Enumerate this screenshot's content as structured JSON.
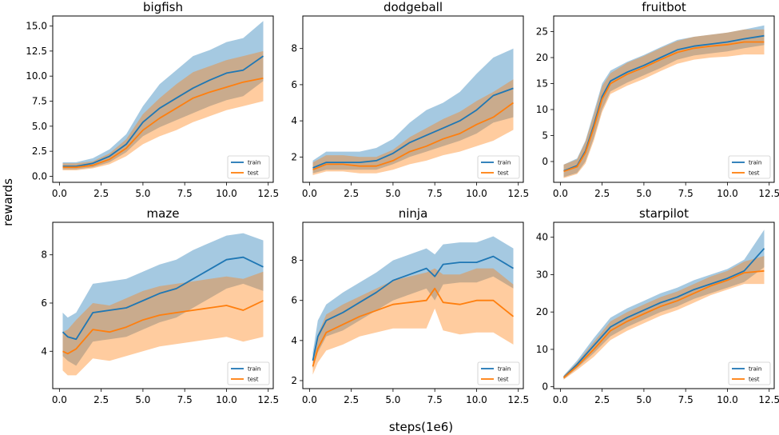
{
  "figure": {
    "xlabel": "steps(1e6)",
    "ylabel": "rewards"
  },
  "colors": {
    "train": "#1f77b4",
    "test": "#ff7f0e"
  },
  "chart_data": [
    {
      "type": "line",
      "title": "bigfish",
      "xlim": [
        -0.4,
        12.8
      ],
      "ylim": [
        -0.6,
        16.0
      ],
      "xticks": [
        0.0,
        2.5,
        5.0,
        7.5,
        10.0,
        12.5
      ],
      "xtick_labels": [
        "0.0",
        "2.5",
        "5.0",
        "7.5",
        "10.0",
        "12.5"
      ],
      "yticks": [
        0.0,
        2.5,
        5.0,
        7.5,
        10.0,
        12.5,
        15.0
      ],
      "ytick_labels": [
        "0.0",
        "2.5",
        "5.0",
        "7.5",
        "10.0",
        "12.5",
        "15.0"
      ],
      "legend_position": "lower-right",
      "x": [
        0.2,
        1.0,
        2.0,
        3.0,
        4.0,
        5.0,
        6.0,
        7.0,
        8.0,
        9.0,
        10.0,
        11.0,
        12.2
      ],
      "series": [
        {
          "name": "train",
          "values": [
            1.0,
            1.0,
            1.3,
            2.0,
            3.2,
            5.4,
            6.8,
            7.8,
            8.8,
            9.6,
            10.3,
            10.6,
            12.0
          ],
          "lower": [
            0.7,
            0.7,
            0.9,
            1.4,
            2.4,
            4.0,
            4.9,
            5.6,
            6.3,
            7.0,
            7.6,
            8.0,
            9.5
          ],
          "upper": [
            1.4,
            1.4,
            1.8,
            2.7,
            4.2,
            7.0,
            9.2,
            10.6,
            12.0,
            12.6,
            13.4,
            13.8,
            15.5
          ]
        },
        {
          "name": "test",
          "values": [
            0.9,
            0.9,
            1.1,
            1.7,
            2.8,
            4.6,
            5.8,
            6.8,
            7.8,
            8.4,
            8.9,
            9.4,
            9.8
          ],
          "lower": [
            0.6,
            0.6,
            0.8,
            1.2,
            2.0,
            3.2,
            4.0,
            4.6,
            5.4,
            6.0,
            6.6,
            7.0,
            7.5
          ],
          "upper": [
            1.3,
            1.3,
            1.5,
            2.3,
            3.7,
            6.2,
            7.8,
            9.2,
            10.4,
            11.0,
            11.6,
            12.0,
            12.5
          ]
        }
      ]
    },
    {
      "type": "line",
      "title": "dodgeball",
      "xlim": [
        -0.4,
        12.8
      ],
      "ylim": [
        0.6,
        9.8
      ],
      "xticks": [
        0.0,
        2.5,
        5.0,
        7.5,
        10.0,
        12.5
      ],
      "xtick_labels": [
        "0.0",
        "2.5",
        "5.0",
        "7.5",
        "10.0",
        "12.5"
      ],
      "yticks": [
        2,
        4,
        6,
        8
      ],
      "ytick_labels": [
        "2",
        "4",
        "6",
        "8"
      ],
      "legend_position": "lower-right",
      "x": [
        0.2,
        1.0,
        2.0,
        3.0,
        4.0,
        5.0,
        6.0,
        7.0,
        8.0,
        9.0,
        10.0,
        11.0,
        12.2
      ],
      "series": [
        {
          "name": "train",
          "values": [
            1.4,
            1.7,
            1.7,
            1.7,
            1.8,
            2.2,
            2.8,
            3.2,
            3.6,
            4.0,
            4.6,
            5.4,
            5.8
          ],
          "lower": [
            1.1,
            1.3,
            1.3,
            1.3,
            1.3,
            1.6,
            2.0,
            2.3,
            2.6,
            2.9,
            3.3,
            3.9,
            4.2
          ],
          "upper": [
            1.8,
            2.3,
            2.3,
            2.3,
            2.5,
            3.0,
            3.9,
            4.6,
            5.0,
            5.6,
            6.6,
            7.5,
            8.0
          ]
        },
        {
          "name": "test",
          "values": [
            1.3,
            1.6,
            1.6,
            1.5,
            1.5,
            1.8,
            2.3,
            2.6,
            3.0,
            3.3,
            3.8,
            4.2,
            5.0
          ],
          "lower": [
            1.0,
            1.2,
            1.2,
            1.1,
            1.1,
            1.3,
            1.6,
            1.8,
            2.1,
            2.3,
            2.6,
            2.9,
            3.5
          ],
          "upper": [
            1.7,
            2.1,
            2.1,
            2.0,
            2.0,
            2.4,
            3.1,
            3.6,
            4.1,
            4.5,
            5.1,
            5.6,
            6.3
          ]
        }
      ]
    },
    {
      "type": "line",
      "title": "fruitbot",
      "xlim": [
        -0.4,
        12.8
      ],
      "ylim": [
        -4.0,
        28.0
      ],
      "xticks": [
        0.0,
        2.5,
        5.0,
        7.5,
        10.0,
        12.5
      ],
      "xtick_labels": [
        "0.0",
        "2.5",
        "5.0",
        "7.5",
        "10.0",
        "12.5"
      ],
      "yticks": [
        0,
        5,
        10,
        15,
        20,
        25
      ],
      "ytick_labels": [
        "0",
        "5",
        "10",
        "15",
        "20",
        "25"
      ],
      "legend_position": "lower-right",
      "x": [
        0.2,
        1.0,
        1.5,
        2.0,
        2.5,
        3.0,
        4.0,
        5.0,
        6.0,
        7.0,
        8.0,
        9.0,
        10.0,
        11.0,
        12.2
      ],
      "series": [
        {
          "name": "train",
          "values": [
            -1.8,
            -0.8,
            2.0,
            7.0,
            12.5,
            15.5,
            17.2,
            18.5,
            20.0,
            21.5,
            22.2,
            22.6,
            23.0,
            23.6,
            24.2
          ],
          "lower": [
            -3.0,
            -2.2,
            0.0,
            4.5,
            10.0,
            13.5,
            15.2,
            16.6,
            18.0,
            19.6,
            20.4,
            20.8,
            21.2,
            21.8,
            22.4
          ],
          "upper": [
            -0.6,
            0.6,
            4.0,
            9.5,
            15.0,
            17.5,
            19.2,
            20.5,
            22.0,
            23.4,
            24.0,
            24.4,
            24.8,
            25.4,
            26.2
          ]
        },
        {
          "name": "test",
          "values": [
            -1.9,
            -1.0,
            1.7,
            6.5,
            12.0,
            15.0,
            16.8,
            18.1,
            19.6,
            21.0,
            21.8,
            22.2,
            22.5,
            23.0,
            23.0
          ],
          "lower": [
            -3.2,
            -2.4,
            -0.4,
            4.0,
            9.5,
            13.0,
            14.6,
            15.9,
            17.4,
            18.8,
            19.6,
            20.0,
            20.2,
            20.6,
            20.6
          ],
          "upper": [
            -0.6,
            0.4,
            3.8,
            9.0,
            14.5,
            17.0,
            19.0,
            20.3,
            21.8,
            23.2,
            24.0,
            24.4,
            24.8,
            25.4,
            25.4
          ]
        }
      ]
    },
    {
      "type": "line",
      "title": "maze",
      "xlim": [
        -0.4,
        12.8
      ],
      "ylim": [
        2.45,
        9.35
      ],
      "xticks": [
        0.0,
        2.5,
        5.0,
        7.5,
        10.0,
        12.5
      ],
      "xtick_labels": [
        "0.0",
        "2.5",
        "5.0",
        "7.5",
        "10.0",
        "12.5"
      ],
      "yticks": [
        4,
        6,
        8
      ],
      "ytick_labels": [
        "4",
        "6",
        "8"
      ],
      "legend_position": "lower-right",
      "x": [
        0.2,
        0.5,
        1.0,
        2.0,
        3.0,
        4.0,
        5.0,
        6.0,
        7.0,
        8.0,
        9.0,
        10.0,
        11.0,
        12.2
      ],
      "series": [
        {
          "name": "train",
          "values": [
            4.8,
            4.6,
            4.5,
            5.6,
            5.7,
            5.8,
            6.1,
            6.4,
            6.6,
            7.0,
            7.4,
            7.8,
            7.9,
            7.5
          ],
          "lower": [
            3.8,
            3.6,
            3.4,
            4.4,
            4.5,
            4.6,
            4.9,
            5.2,
            5.4,
            5.8,
            6.2,
            6.6,
            6.8,
            6.5
          ],
          "upper": [
            5.6,
            5.4,
            5.6,
            6.8,
            6.9,
            7.0,
            7.3,
            7.6,
            7.8,
            8.2,
            8.5,
            8.8,
            8.9,
            8.6
          ]
        },
        {
          "name": "test",
          "values": [
            4.0,
            3.9,
            4.1,
            4.9,
            4.8,
            5.0,
            5.3,
            5.5,
            5.6,
            5.7,
            5.8,
            5.9,
            5.7,
            6.1
          ],
          "lower": [
            3.2,
            3.0,
            3.0,
            3.7,
            3.6,
            3.8,
            4.0,
            4.2,
            4.3,
            4.4,
            4.5,
            4.6,
            4.4,
            4.6
          ],
          "upper": [
            4.8,
            4.9,
            5.3,
            6.0,
            5.9,
            6.2,
            6.5,
            6.7,
            6.8,
            6.9,
            7.0,
            7.1,
            7.0,
            7.3
          ]
        }
      ]
    },
    {
      "type": "line",
      "title": "ninja",
      "xlim": [
        -0.4,
        12.8
      ],
      "ylim": [
        1.6,
        9.9
      ],
      "xticks": [
        0.0,
        2.5,
        5.0,
        7.5,
        10.0,
        12.5
      ],
      "xtick_labels": [
        "0.0",
        "2.5",
        "5.0",
        "7.5",
        "10.0",
        "12.5"
      ],
      "yticks": [
        2,
        4,
        6,
        8
      ],
      "ytick_labels": [
        "2",
        "4",
        "6",
        "8"
      ],
      "legend_position": "lower-right",
      "x": [
        0.2,
        0.5,
        1.0,
        2.0,
        3.0,
        4.0,
        5.0,
        6.0,
        7.0,
        7.5,
        8.0,
        9.0,
        10.0,
        11.0,
        12.2
      ],
      "series": [
        {
          "name": "train",
          "values": [
            3.0,
            4.2,
            5.0,
            5.4,
            5.9,
            6.4,
            7.0,
            7.3,
            7.6,
            7.2,
            7.8,
            7.9,
            7.9,
            8.2,
            7.6
          ],
          "lower": [
            2.6,
            3.4,
            4.2,
            4.5,
            5.0,
            5.5,
            6.0,
            6.3,
            6.6,
            6.0,
            6.8,
            6.9,
            6.9,
            7.2,
            6.6
          ],
          "upper": [
            3.4,
            5.0,
            5.8,
            6.4,
            6.9,
            7.4,
            8.0,
            8.3,
            8.6,
            8.3,
            8.8,
            8.9,
            8.9,
            9.2,
            8.6
          ]
        },
        {
          "name": "test",
          "values": [
            2.7,
            3.6,
            4.4,
            4.8,
            5.2,
            5.5,
            5.8,
            5.9,
            6.0,
            6.6,
            5.9,
            5.8,
            6.0,
            6.0,
            5.2
          ],
          "lower": [
            2.3,
            2.9,
            3.5,
            3.8,
            4.2,
            4.4,
            4.6,
            4.6,
            4.6,
            5.6,
            4.5,
            4.3,
            4.4,
            4.4,
            3.8
          ],
          "upper": [
            3.1,
            4.3,
            5.3,
            5.8,
            6.2,
            6.6,
            7.0,
            7.2,
            7.4,
            7.6,
            7.3,
            7.3,
            7.6,
            7.6,
            6.8
          ]
        }
      ]
    },
    {
      "type": "line",
      "title": "starpilot",
      "xlim": [
        -0.4,
        12.8
      ],
      "ylim": [
        -0.5,
        44.0
      ],
      "xticks": [
        0.0,
        2.5,
        5.0,
        7.5,
        10.0,
        12.5
      ],
      "xtick_labels": [
        "0.0",
        "2.5",
        "5.0",
        "7.5",
        "10.0",
        "12.5"
      ],
      "yticks": [
        0,
        10,
        20,
        30,
        40
      ],
      "ytick_labels": [
        "0",
        "10",
        "20",
        "30",
        "40"
      ],
      "legend_position": "lower-right",
      "x": [
        0.2,
        1.0,
        2.0,
        3.0,
        4.0,
        5.0,
        6.0,
        7.0,
        8.0,
        9.0,
        10.0,
        11.0,
        12.2
      ],
      "series": [
        {
          "name": "train",
          "values": [
            2.5,
            6.0,
            11.0,
            16.0,
            18.5,
            20.5,
            22.5,
            24.0,
            26.0,
            27.5,
            29.0,
            31.0,
            37.0
          ],
          "lower": [
            2.0,
            5.0,
            9.0,
            13.5,
            16.0,
            18.0,
            20.0,
            21.5,
            23.5,
            25.0,
            26.5,
            28.0,
            32.0
          ],
          "upper": [
            3.0,
            7.0,
            13.0,
            18.5,
            21.0,
            23.0,
            25.0,
            26.5,
            28.5,
            30.0,
            31.5,
            34.0,
            42.0
          ]
        },
        {
          "name": "test",
          "values": [
            2.4,
            5.5,
            10.0,
            15.0,
            17.5,
            19.5,
            21.5,
            23.0,
            25.0,
            27.0,
            28.5,
            30.5,
            31.0
          ],
          "lower": [
            1.9,
            4.5,
            8.0,
            12.5,
            15.0,
            17.0,
            19.0,
            20.5,
            22.5,
            24.5,
            26.0,
            27.5,
            27.5
          ],
          "upper": [
            2.9,
            6.5,
            12.0,
            17.5,
            20.0,
            22.0,
            24.0,
            25.5,
            27.5,
            29.5,
            31.0,
            33.5,
            35.0
          ]
        }
      ]
    }
  ]
}
